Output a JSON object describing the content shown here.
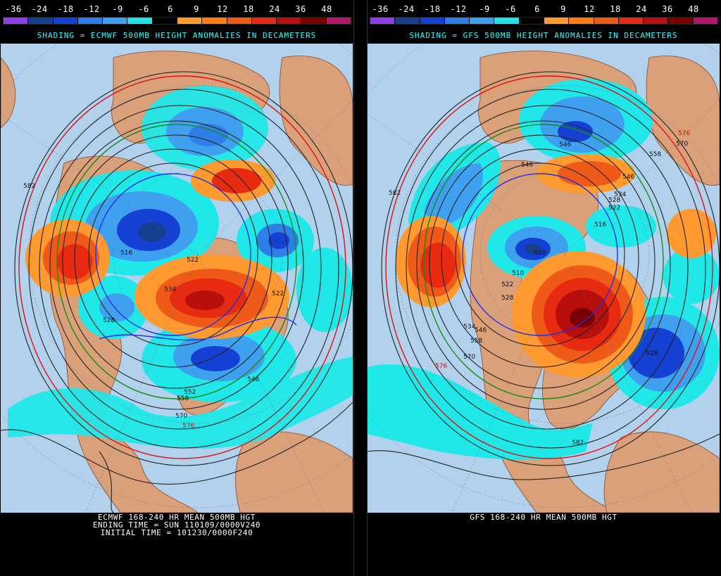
{
  "legend": {
    "labels": [
      "-36",
      "-24",
      "-18",
      "-12",
      "-9",
      "-6",
      "6",
      "9",
      "12",
      "18",
      "24",
      "36",
      "48"
    ],
    "colors": [
      "#8f3fe6",
      "#173f8f",
      "#1540d4",
      "#2e7fe8",
      "#3fa0f0",
      "#20e0e8",
      "#000000",
      "#ff9a30",
      "#ff7a18",
      "#f05a18",
      "#e82a10",
      "#b80e0e",
      "#7a0000",
      "#b01870"
    ]
  },
  "panels": [
    {
      "shading_title": "SHADING = ECMWF 500MB HEIGHT ANOMALIES IN DECAMETERS",
      "captions": [
        "ECMWF 168-240 HR MEAN 500MB HGT",
        "ENDING TIME = SUN 110109/0000V240",
        "INITIAL TIME = 101230/0000F240"
      ],
      "contour_labels": [
        "582",
        "522",
        "516",
        "534",
        "528",
        "522",
        "546",
        "552",
        "558",
        "570",
        "576"
      ]
    },
    {
      "shading_title": "SHADING = GFS 500MB HEIGHT ANOMALIES IN DECAMETERS",
      "captions": [
        "GFS 168-240 HR MEAN 500MB HGT"
      ],
      "contour_labels": [
        "582",
        "546",
        "546",
        "534",
        "528",
        "522",
        "516",
        "510",
        "510",
        "522",
        "528",
        "534",
        "546",
        "558",
        "570",
        "576",
        "528",
        "582",
        "576",
        "570",
        "558",
        "546"
      ]
    }
  ]
}
